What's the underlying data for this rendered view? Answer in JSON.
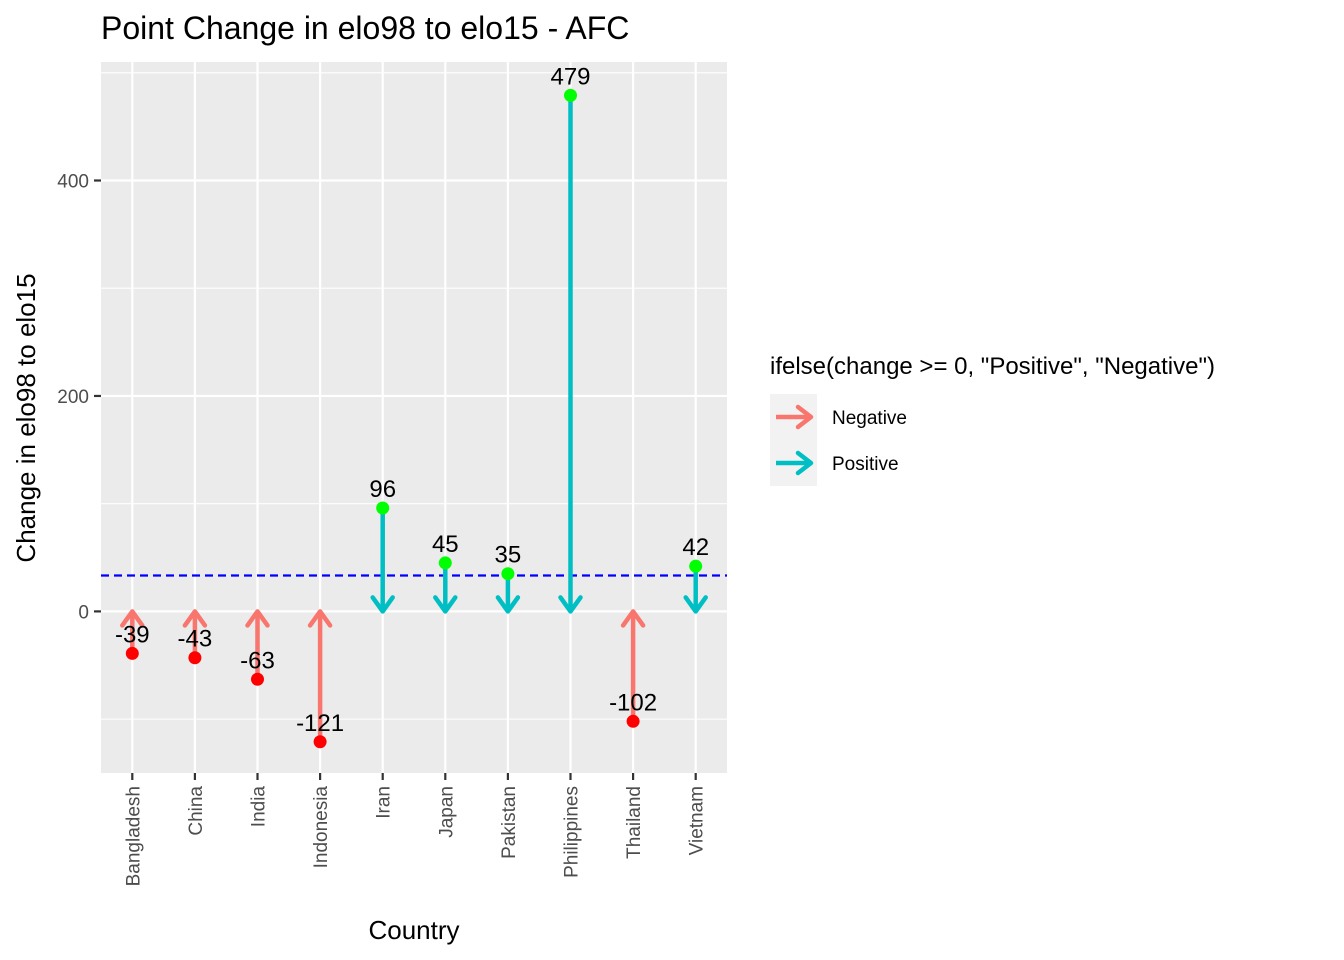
{
  "chart_data": {
    "type": "arrow-lollipop",
    "title": "Point Change in elo98 to elo15 - AFC",
    "xlabel": "Country",
    "ylabel": "Change in elo98 to elo15",
    "categories": [
      "Bangladesh",
      "China",
      "India",
      "Indonesia",
      "Iran",
      "Japan",
      "Pakistan",
      "Philippines",
      "Thailand",
      "Vietnam"
    ],
    "values": [
      -39,
      -43,
      -63,
      -121,
      96,
      45,
      35,
      479,
      -102,
      42
    ],
    "value_labels": [
      "-39",
      "-43",
      "-63",
      "-121",
      "96",
      "45",
      "35",
      "479",
      "-102",
      "42"
    ],
    "sign_group": [
      "Negative",
      "Negative",
      "Negative",
      "Negative",
      "Positive",
      "Positive",
      "Positive",
      "Positive",
      "Negative",
      "Positive"
    ],
    "ylim": [
      -150,
      510
    ],
    "y_ticks": [
      0,
      200,
      400
    ],
    "y_tick_labels": [
      "0",
      "200",
      "400"
    ],
    "reference_line": {
      "y": 33.3,
      "color": "#0000ff",
      "style": "dashed"
    },
    "grid": true,
    "legend": {
      "title": "ifelse(change >= 0, \"Positive\", \"Negative\")",
      "placement": "right",
      "entries": [
        {
          "label": "Negative",
          "color": "#f8766d"
        },
        {
          "label": "Positive",
          "color": "#00bfc4"
        }
      ]
    },
    "point_colors": {
      "Negative": "#ff0000",
      "Positive": "#00ff00"
    }
  }
}
